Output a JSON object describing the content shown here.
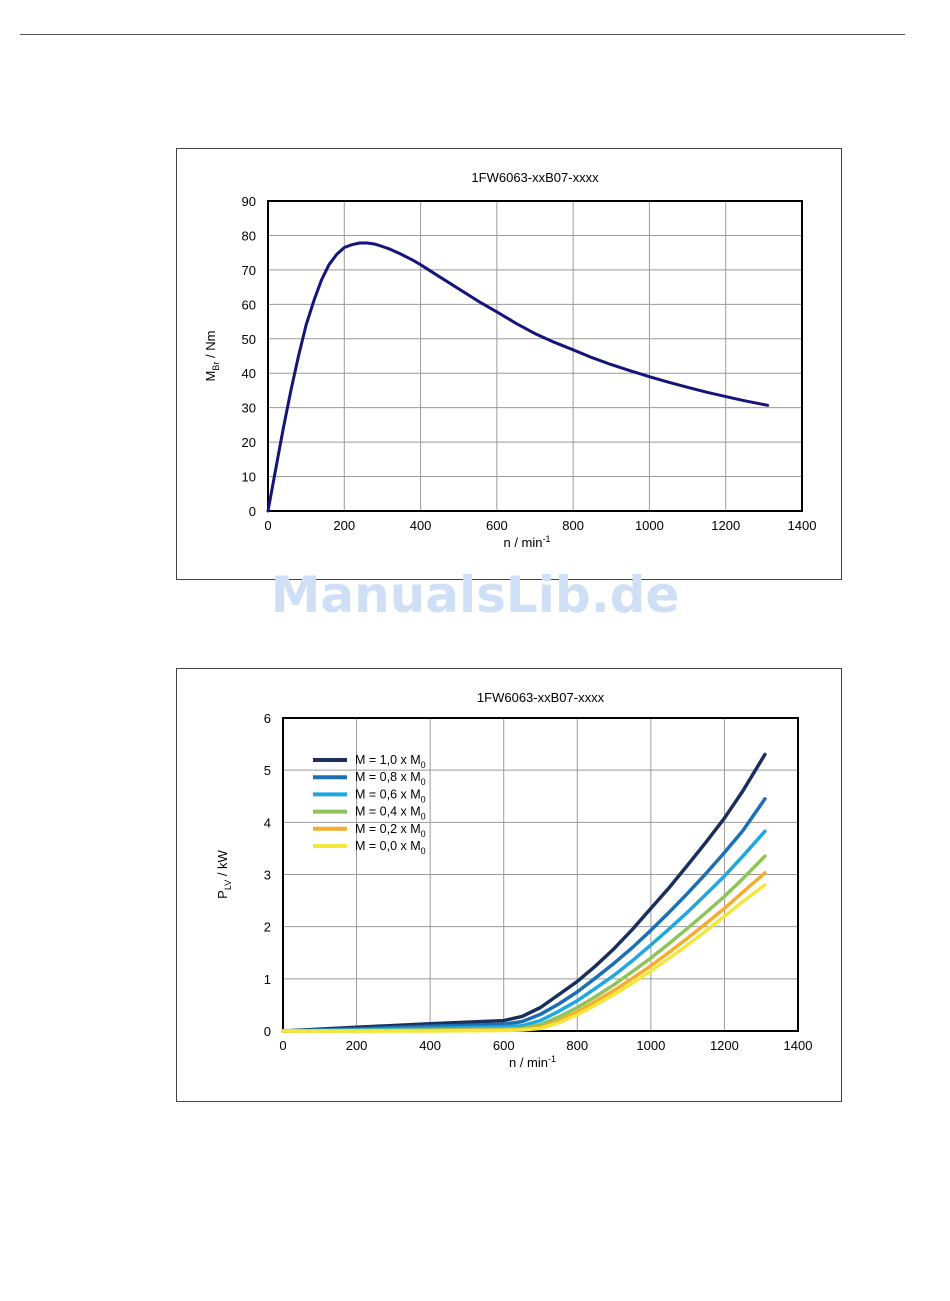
{
  "watermark": "ManualsLib.de",
  "chart_data": [
    {
      "type": "line",
      "title": "1FW6063-xxB07-xxxx",
      "xlabel_main": "n / min",
      "xlabel_sup": "-1",
      "ylabel_main": "M",
      "ylabel_sub": "Br",
      "ylabel_rest": " / Nm",
      "xlim": [
        0,
        1400
      ],
      "ylim": [
        0,
        90
      ],
      "xticks": [
        0,
        200,
        400,
        600,
        800,
        1000,
        1200,
        1400
      ],
      "yticks": [
        0,
        10,
        20,
        30,
        40,
        50,
        60,
        70,
        80,
        90
      ],
      "grid": true,
      "series": [
        {
          "color": "#14147a",
          "x": [
            0,
            20,
            40,
            60,
            80,
            100,
            120,
            140,
            160,
            180,
            200,
            220,
            240,
            260,
            280,
            300,
            320,
            350,
            380,
            400,
            450,
            500,
            550,
            600,
            650,
            700,
            750,
            800,
            850,
            900,
            950,
            1000,
            1050,
            1100,
            1150,
            1200,
            1250,
            1310
          ],
          "y": [
            0,
            12,
            24,
            35,
            45,
            54,
            61,
            67,
            71.5,
            74.5,
            76.5,
            77.3,
            77.8,
            77.8,
            77.5,
            76.8,
            76,
            74.5,
            72.8,
            71.5,
            68,
            64.5,
            61,
            57.8,
            54.5,
            51.5,
            49,
            46.8,
            44.5,
            42.5,
            40.7,
            39,
            37.4,
            35.9,
            34.5,
            33.2,
            32,
            30.7
          ]
        }
      ]
    },
    {
      "type": "line",
      "title": "1FW6063-xxB07-xxxx",
      "xlabel_main": "n / min",
      "xlabel_sup": "-1",
      "ylabel_main": "P",
      "ylabel_sub": "LV",
      "ylabel_rest": " / kW",
      "xlim": [
        0,
        1400
      ],
      "ylim": [
        0,
        6
      ],
      "xticks": [
        0,
        200,
        400,
        600,
        800,
        1000,
        1200,
        1400
      ],
      "yticks": [
        0,
        1,
        2,
        3,
        4,
        5,
        6
      ],
      "grid": true,
      "legend_position": "top-left",
      "series": [
        {
          "name_main": "M = 1,0 x M",
          "name_sub": "0",
          "color": "#1b2f5e",
          "x": [
            0,
            200,
            400,
            600,
            650,
            700,
            750,
            800,
            850,
            900,
            950,
            1000,
            1050,
            1100,
            1150,
            1200,
            1250,
            1310
          ],
          "y": [
            0,
            0.07,
            0.14,
            0.2,
            0.28,
            0.45,
            0.7,
            0.95,
            1.25,
            1.58,
            1.95,
            2.35,
            2.75,
            3.18,
            3.62,
            4.08,
            4.6,
            5.3
          ]
        },
        {
          "name_main": "M = 0,8 x M",
          "name_sub": "0",
          "color": "#1d6fb4",
          "x": [
            0,
            200,
            400,
            600,
            650,
            700,
            750,
            800,
            850,
            900,
            950,
            1000,
            1050,
            1100,
            1150,
            1200,
            1250,
            1310
          ],
          "y": [
            0,
            0.04,
            0.09,
            0.13,
            0.18,
            0.32,
            0.52,
            0.75,
            1.02,
            1.3,
            1.6,
            1.93,
            2.28,
            2.64,
            3.02,
            3.42,
            3.84,
            4.45
          ]
        },
        {
          "name_main": "M = 0,6 x M",
          "name_sub": "0",
          "color": "#1fa8e0",
          "x": [
            0,
            200,
            400,
            600,
            650,
            700,
            750,
            800,
            850,
            900,
            950,
            1000,
            1050,
            1100,
            1150,
            1200,
            1250,
            1310
          ],
          "y": [
            0,
            0.02,
            0.05,
            0.08,
            0.1,
            0.2,
            0.38,
            0.58,
            0.82,
            1.07,
            1.35,
            1.65,
            1.96,
            2.28,
            2.62,
            2.97,
            3.35,
            3.83
          ]
        },
        {
          "name_main": "M = 0,4 x M",
          "name_sub": "0",
          "color": "#8fc45a",
          "x": [
            0,
            200,
            400,
            600,
            650,
            700,
            750,
            800,
            850,
            900,
            950,
            1000,
            1050,
            1100,
            1150,
            1200,
            1250,
            1310
          ],
          "y": [
            0,
            0.01,
            0.02,
            0.04,
            0.05,
            0.12,
            0.27,
            0.45,
            0.66,
            0.89,
            1.14,
            1.4,
            1.68,
            1.97,
            2.27,
            2.58,
            2.92,
            3.35
          ]
        },
        {
          "name_main": "M = 0,2 x M",
          "name_sub": "0",
          "color": "#f6ad2e",
          "x": [
            0,
            200,
            400,
            600,
            650,
            700,
            750,
            800,
            850,
            900,
            950,
            1000,
            1050,
            1100,
            1150,
            1200,
            1250,
            1310
          ],
          "y": [
            0,
            0.0,
            0.01,
            0.02,
            0.03,
            0.07,
            0.2,
            0.37,
            0.57,
            0.78,
            1.01,
            1.25,
            1.51,
            1.78,
            2.06,
            2.35,
            2.66,
            3.03
          ]
        },
        {
          "name_main": "M = 0,0 x M",
          "name_sub": "0",
          "color": "#f3e839",
          "x": [
            0,
            200,
            400,
            600,
            650,
            700,
            750,
            800,
            850,
            900,
            950,
            1000,
            1050,
            1100,
            1150,
            1200,
            1250,
            1310
          ],
          "y": [
            0,
            0.0,
            0.0,
            0.01,
            0.02,
            0.05,
            0.16,
            0.31,
            0.5,
            0.7,
            0.92,
            1.15,
            1.4,
            1.65,
            1.92,
            2.2,
            2.48,
            2.8
          ]
        }
      ]
    }
  ]
}
